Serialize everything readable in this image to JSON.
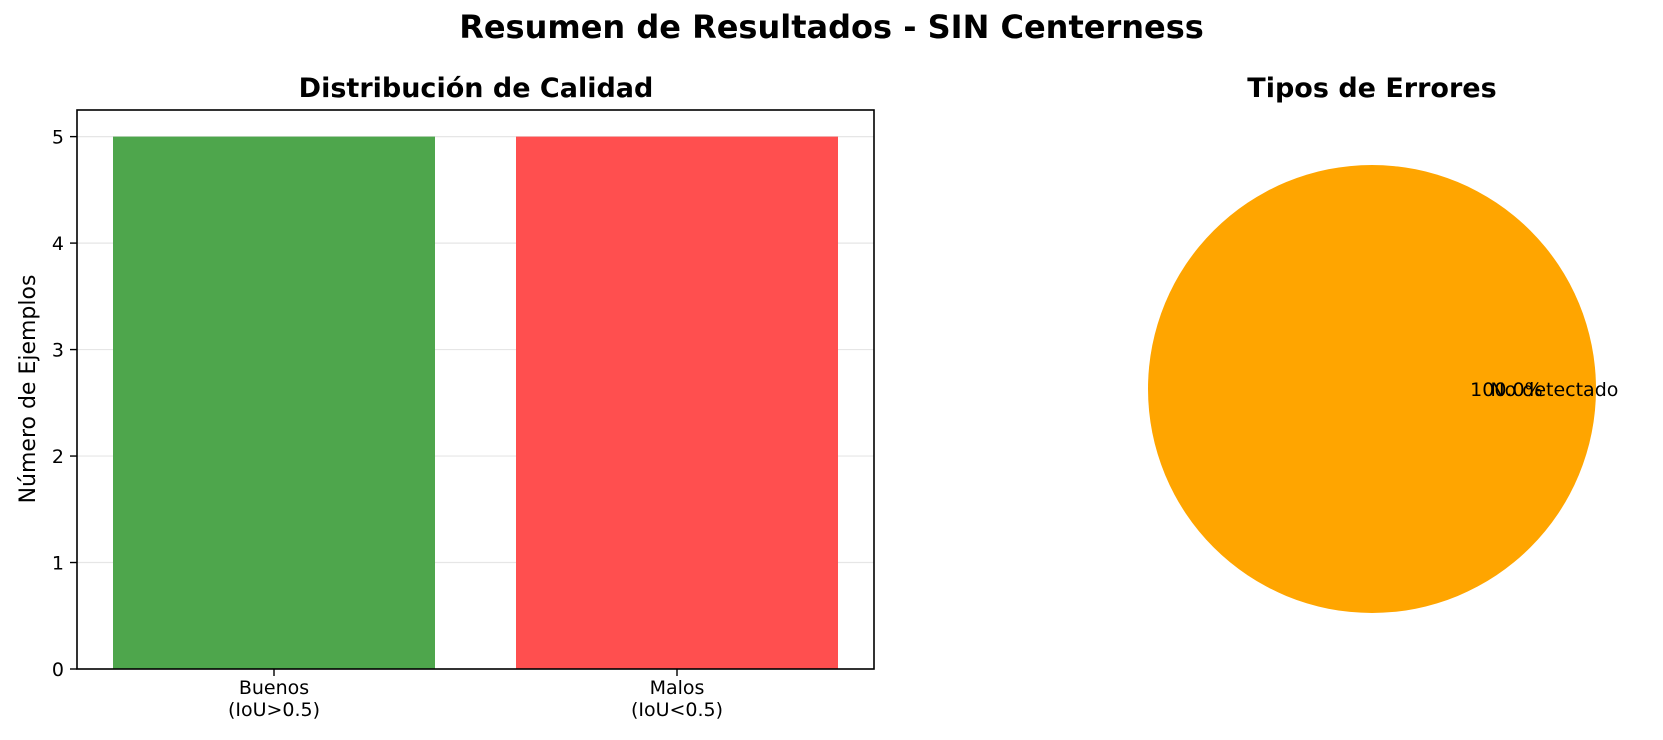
{
  "figure": {
    "title": "Resumen de Resultados - SIN Centerness"
  },
  "chart_data": [
    {
      "type": "bar",
      "title": "Distribución de Calidad",
      "xlabel": "",
      "ylabel": "Número de Ejemplos",
      "categories": [
        "Buenos\n(IoU>0.5)",
        "Malos\n(IoU<0.5)"
      ],
      "values": [
        5,
        5
      ],
      "colors": [
        "#4ea64c",
        "#ff4f4f"
      ],
      "ylim": [
        0,
        5.25
      ],
      "yticks": [
        0,
        1,
        2,
        3,
        4,
        5
      ],
      "grid": "horizontal"
    },
    {
      "type": "pie",
      "title": "Tipos de Errores",
      "labels": [
        "No detectado"
      ],
      "values": [
        100.0
      ],
      "autopct": [
        "100.0%"
      ],
      "colors": [
        "#ffa500"
      ]
    }
  ]
}
